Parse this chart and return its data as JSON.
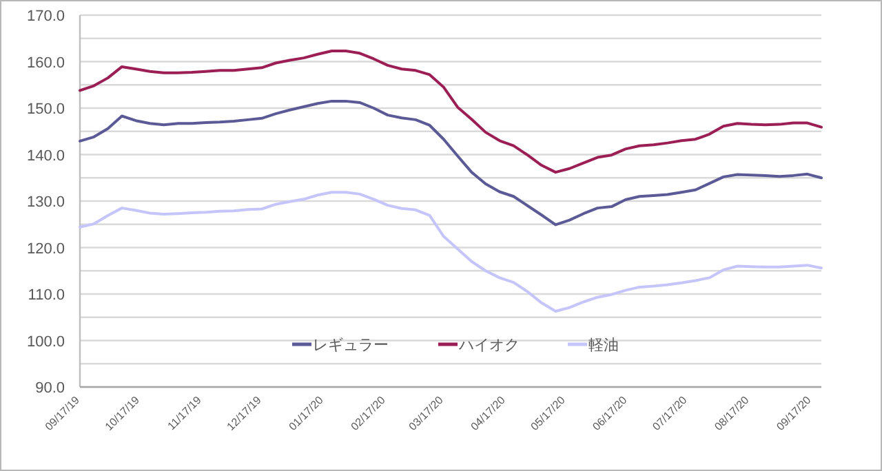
{
  "chart_data": {
    "type": "line",
    "x": [
      "2019-09-17",
      "2019-09-24",
      "2019-10-01",
      "2019-10-08",
      "2019-10-15",
      "2019-10-22",
      "2019-10-29",
      "2019-11-05",
      "2019-11-12",
      "2019-11-19",
      "2019-11-26",
      "2019-12-03",
      "2019-12-10",
      "2019-12-17",
      "2019-12-24",
      "2019-12-31",
      "2020-01-07",
      "2020-01-14",
      "2020-01-21",
      "2020-01-28",
      "2020-02-04",
      "2020-02-11",
      "2020-02-18",
      "2020-02-25",
      "2020-03-03",
      "2020-03-10",
      "2020-03-17",
      "2020-03-24",
      "2020-03-31",
      "2020-04-07",
      "2020-04-14",
      "2020-04-21",
      "2020-04-28",
      "2020-05-05",
      "2020-05-12",
      "2020-05-19",
      "2020-05-26",
      "2020-06-02",
      "2020-06-09",
      "2020-06-16",
      "2020-06-23",
      "2020-06-30",
      "2020-07-07",
      "2020-07-14",
      "2020-07-21",
      "2020-07-28",
      "2020-08-04",
      "2020-08-11",
      "2020-08-18",
      "2020-08-25",
      "2020-09-01",
      "2020-09-08",
      "2020-09-15",
      "2020-09-22"
    ],
    "series": [
      {
        "name": "レギュラー",
        "color": "#5b5a96",
        "values": [
          142.9,
          143.8,
          145.6,
          148.3,
          147.3,
          146.7,
          146.4,
          146.7,
          146.7,
          146.9,
          147.0,
          147.2,
          147.5,
          147.8,
          148.8,
          149.6,
          150.3,
          151.0,
          151.5,
          151.5,
          151.2,
          150.0,
          148.5,
          147.9,
          147.5,
          146.3,
          143.3,
          139.7,
          136.2,
          133.7,
          132.0,
          131.0,
          129.0,
          127.0,
          124.9,
          125.9,
          127.3,
          128.5,
          128.8,
          130.3,
          131.0,
          131.2,
          131.4,
          131.9,
          132.4,
          133.8,
          135.2,
          135.7,
          135.6,
          135.5,
          135.3,
          135.5,
          135.8,
          135.0
        ]
      },
      {
        "name": "ハイオク",
        "color": "#9b1f55",
        "values": [
          153.8,
          154.8,
          156.5,
          158.9,
          158.4,
          157.9,
          157.6,
          157.6,
          157.7,
          157.9,
          158.1,
          158.1,
          158.4,
          158.7,
          159.7,
          160.3,
          160.8,
          161.6,
          162.3,
          162.3,
          161.8,
          160.6,
          159.2,
          158.4,
          158.1,
          157.2,
          154.5,
          150.2,
          147.6,
          144.8,
          143.0,
          141.9,
          139.9,
          137.7,
          136.2,
          137.0,
          138.2,
          139.4,
          139.9,
          141.2,
          141.9,
          142.1,
          142.5,
          143.0,
          143.3,
          144.4,
          146.1,
          146.7,
          146.5,
          146.4,
          146.5,
          146.8,
          146.8,
          145.9
        ]
      },
      {
        "name": "軽油",
        "color": "#c5c5fb",
        "values": [
          124.4,
          125.1,
          126.9,
          128.5,
          128.0,
          127.4,
          127.2,
          127.3,
          127.5,
          127.6,
          127.8,
          127.9,
          128.2,
          128.3,
          129.3,
          129.9,
          130.4,
          131.3,
          131.9,
          131.9,
          131.5,
          130.4,
          129.1,
          128.4,
          128.1,
          126.9,
          122.4,
          119.7,
          117.0,
          115.0,
          113.5,
          112.5,
          110.5,
          108.1,
          106.3,
          107.1,
          108.3,
          109.3,
          109.9,
          110.8,
          111.5,
          111.7,
          112.0,
          112.4,
          112.9,
          113.5,
          115.2,
          116.0,
          115.9,
          115.8,
          115.8,
          116.0,
          116.2,
          115.6
        ]
      }
    ],
    "xlim": [
      "2019-09-17",
      "2020-09-22"
    ],
    "xticks": [
      {
        "value": "2019-09-17",
        "label": "09/17/19"
      },
      {
        "value": "2019-10-17",
        "label": "10/17/19"
      },
      {
        "value": "2019-11-17",
        "label": "11/17/19"
      },
      {
        "value": "2019-12-17",
        "label": "12/17/19"
      },
      {
        "value": "2020-01-17",
        "label": "01/17/20"
      },
      {
        "value": "2020-02-17",
        "label": "02/17/20"
      },
      {
        "value": "2020-03-17",
        "label": "03/17/20"
      },
      {
        "value": "2020-04-17",
        "label": "04/17/20"
      },
      {
        "value": "2020-05-17",
        "label": "05/17/20"
      },
      {
        "value": "2020-06-17",
        "label": "06/17/20"
      },
      {
        "value": "2020-07-17",
        "label": "07/17/20"
      },
      {
        "value": "2020-08-17",
        "label": "08/17/20"
      },
      {
        "value": "2020-09-17",
        "label": "09/17/20"
      }
    ],
    "ylim": [
      90,
      170
    ],
    "yticks": [
      {
        "value": 90,
        "label": "90.0"
      },
      {
        "value": 95,
        "label": null
      },
      {
        "value": 100,
        "label": "100.0"
      },
      {
        "value": 105,
        "label": null
      },
      {
        "value": 110,
        "label": "110.0"
      },
      {
        "value": 115,
        "label": null
      },
      {
        "value": 120,
        "label": "120.0"
      },
      {
        "value": 125,
        "label": null
      },
      {
        "value": 130,
        "label": "130.0"
      },
      {
        "value": 135,
        "label": null
      },
      {
        "value": 140,
        "label": "140.0"
      },
      {
        "value": 145,
        "label": null
      },
      {
        "value": 150,
        "label": "150.0"
      },
      {
        "value": 155,
        "label": null
      },
      {
        "value": 160,
        "label": "160.0"
      },
      {
        "value": 165,
        "label": null
      },
      {
        "value": 170,
        "label": "170.0"
      }
    ],
    "grid": "y",
    "legend": "bottom",
    "marker": "none",
    "line_style": "solid"
  }
}
